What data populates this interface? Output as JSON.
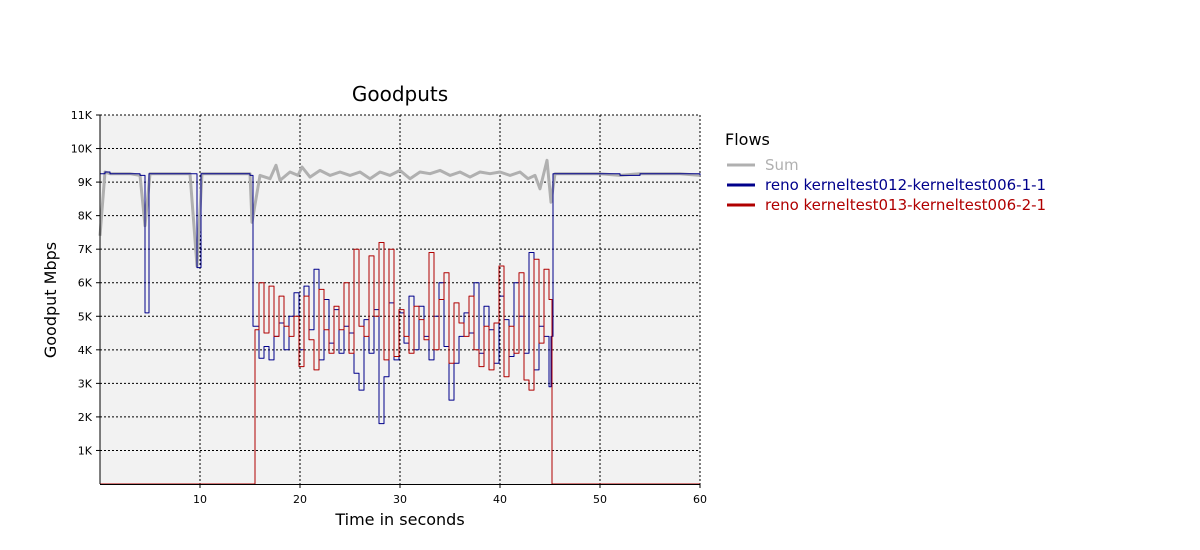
{
  "chart_data": {
    "type": "line",
    "title": "Goodputs",
    "xlabel": "Time in seconds",
    "ylabel": "Goodput Mbps",
    "xlim": [
      0,
      60
    ],
    "ylim": [
      0,
      11000
    ],
    "x_ticks": [
      10,
      20,
      30,
      40,
      50,
      60
    ],
    "x_tick_labels": [
      "10",
      "20",
      "30",
      "40",
      "50",
      "60"
    ],
    "y_ticks": [
      1000,
      2000,
      3000,
      4000,
      5000,
      6000,
      7000,
      8000,
      9000,
      10000,
      11000
    ],
    "y_tick_labels": [
      "1K",
      "2K",
      "3K",
      "4K",
      "5K",
      "6K",
      "7K",
      "8K",
      "9K",
      "10K",
      "11K"
    ],
    "grid": true,
    "legend_title": "Flows",
    "legend_position": "right",
    "series": [
      {
        "name": "Sum",
        "color": "#b0b0b0",
        "style": "line",
        "points": [
          [
            0,
            7400
          ],
          [
            0.5,
            9300
          ],
          [
            1,
            9250
          ],
          [
            2,
            9250
          ],
          [
            3,
            9250
          ],
          [
            4,
            9200
          ],
          [
            4.5,
            7700
          ],
          [
            5,
            9250
          ],
          [
            6,
            9250
          ],
          [
            7,
            9250
          ],
          [
            8,
            9250
          ],
          [
            9,
            9250
          ],
          [
            9.7,
            6500
          ],
          [
            10.2,
            9250
          ],
          [
            11,
            9250
          ],
          [
            12,
            9250
          ],
          [
            13,
            9250
          ],
          [
            14,
            9250
          ],
          [
            15,
            9250
          ],
          [
            15.2,
            7800
          ],
          [
            16,
            9200
          ],
          [
            17,
            9100
          ],
          [
            17.6,
            9500
          ],
          [
            18,
            9050
          ],
          [
            19,
            9300
          ],
          [
            19.8,
            9200
          ],
          [
            20.2,
            9450
          ],
          [
            21,
            9150
          ],
          [
            22,
            9350
          ],
          [
            23,
            9200
          ],
          [
            24,
            9300
          ],
          [
            25,
            9200
          ],
          [
            26,
            9300
          ],
          [
            27,
            9100
          ],
          [
            28,
            9300
          ],
          [
            29,
            9200
          ],
          [
            30,
            9350
          ],
          [
            31,
            9100
          ],
          [
            32,
            9300
          ],
          [
            33,
            9250
          ],
          [
            34,
            9350
          ],
          [
            35,
            9200
          ],
          [
            36,
            9300
          ],
          [
            37,
            9150
          ],
          [
            38,
            9300
          ],
          [
            39,
            9250
          ],
          [
            40,
            9300
          ],
          [
            41,
            9200
          ],
          [
            42,
            9300
          ],
          [
            42.8,
            9100
          ],
          [
            43.5,
            9200
          ],
          [
            44,
            8800
          ],
          [
            44.7,
            9650
          ],
          [
            45.1,
            8400
          ],
          [
            45.5,
            9250
          ],
          [
            46,
            9250
          ],
          [
            48,
            9250
          ],
          [
            50,
            9250
          ],
          [
            52,
            9200
          ],
          [
            54,
            9250
          ],
          [
            56,
            9250
          ],
          [
            58,
            9250
          ],
          [
            60,
            9200
          ]
        ]
      },
      {
        "name": "reno kerneltest012-kerneltest006-1-1",
        "color": "#00008b",
        "style": "step",
        "points": [
          [
            0,
            9250
          ],
          [
            0.5,
            9300
          ],
          [
            1,
            9250
          ],
          [
            2,
            9250
          ],
          [
            3,
            9250
          ],
          [
            4,
            9200
          ],
          [
            4.5,
            5100
          ],
          [
            4.9,
            9250
          ],
          [
            6,
            9250
          ],
          [
            8,
            9250
          ],
          [
            9.7,
            6450
          ],
          [
            10.1,
            9250
          ],
          [
            12,
            9250
          ],
          [
            14,
            9250
          ],
          [
            15,
            9200
          ],
          [
            15.3,
            4700
          ],
          [
            15.9,
            3750
          ],
          [
            16.4,
            4100
          ],
          [
            16.9,
            3700
          ],
          [
            17.4,
            4400
          ],
          [
            17.9,
            4800
          ],
          [
            18.4,
            4000
          ],
          [
            18.9,
            5000
          ],
          [
            19.4,
            5700
          ],
          [
            19.9,
            4000
          ],
          [
            20.4,
            5900
          ],
          [
            20.9,
            4600
          ],
          [
            21.4,
            6400
          ],
          [
            21.9,
            3700
          ],
          [
            22.4,
            5500
          ],
          [
            22.9,
            4200
          ],
          [
            23.4,
            5200
          ],
          [
            23.9,
            3900
          ],
          [
            24.4,
            4700
          ],
          [
            24.9,
            4500
          ],
          [
            25.4,
            3300
          ],
          [
            25.9,
            2800
          ],
          [
            26.4,
            4900
          ],
          [
            26.9,
            3900
          ],
          [
            27.4,
            5200
          ],
          [
            27.9,
            1800
          ],
          [
            28.4,
            3200
          ],
          [
            28.9,
            5400
          ],
          [
            29.4,
            3700
          ],
          [
            29.9,
            5100
          ],
          [
            30.4,
            4200
          ],
          [
            30.9,
            5600
          ],
          [
            31.4,
            4000
          ],
          [
            31.9,
            5300
          ],
          [
            32.4,
            4400
          ],
          [
            32.9,
            3700
          ],
          [
            33.4,
            5000
          ],
          [
            33.9,
            6000
          ],
          [
            34.4,
            4100
          ],
          [
            34.9,
            2500
          ],
          [
            35.4,
            3600
          ],
          [
            35.9,
            4400
          ],
          [
            36.4,
            5100
          ],
          [
            36.9,
            4500
          ],
          [
            37.4,
            6000
          ],
          [
            37.9,
            3900
          ],
          [
            38.4,
            5300
          ],
          [
            38.9,
            4600
          ],
          [
            39.4,
            3600
          ],
          [
            39.9,
            5600
          ],
          [
            40.4,
            4900
          ],
          [
            40.9,
            3800
          ],
          [
            41.4,
            6000
          ],
          [
            41.9,
            5000
          ],
          [
            42.4,
            3900
          ],
          [
            42.9,
            6900
          ],
          [
            43.4,
            3400
          ],
          [
            43.9,
            4700
          ],
          [
            44.4,
            4400
          ],
          [
            44.9,
            2900
          ],
          [
            45.1,
            4400
          ],
          [
            45.3,
            9250
          ],
          [
            46,
            9250
          ],
          [
            48,
            9250
          ],
          [
            50,
            9250
          ],
          [
            52,
            9200
          ],
          [
            54,
            9250
          ],
          [
            56,
            9250
          ],
          [
            58,
            9250
          ],
          [
            60,
            9200
          ]
        ]
      },
      {
        "name": "reno kerneltest013-kerneltest006-2-1",
        "color": "#b00000",
        "style": "step",
        "points": [
          [
            0,
            0
          ],
          [
            15.4,
            0
          ],
          [
            15.5,
            4600
          ],
          [
            15.9,
            6000
          ],
          [
            16.4,
            4500
          ],
          [
            16.9,
            5900
          ],
          [
            17.4,
            4400
          ],
          [
            17.9,
            5600
          ],
          [
            18.4,
            4700
          ],
          [
            18.9,
            4400
          ],
          [
            19.4,
            5000
          ],
          [
            19.9,
            3500
          ],
          [
            20.4,
            5600
          ],
          [
            20.9,
            4300
          ],
          [
            21.4,
            3400
          ],
          [
            21.9,
            5800
          ],
          [
            22.4,
            4600
          ],
          [
            22.9,
            3900
          ],
          [
            23.4,
            5300
          ],
          [
            23.9,
            4600
          ],
          [
            24.4,
            6000
          ],
          [
            24.9,
            3900
          ],
          [
            25.4,
            7000
          ],
          [
            25.9,
            4700
          ],
          [
            26.4,
            4400
          ],
          [
            26.9,
            6800
          ],
          [
            27.4,
            5000
          ],
          [
            27.9,
            7200
          ],
          [
            28.4,
            3700
          ],
          [
            28.9,
            7000
          ],
          [
            29.4,
            3800
          ],
          [
            29.9,
            5200
          ],
          [
            30.4,
            4400
          ],
          [
            30.9,
            3900
          ],
          [
            31.4,
            5300
          ],
          [
            31.9,
            4900
          ],
          [
            32.4,
            4300
          ],
          [
            32.9,
            6900
          ],
          [
            33.4,
            4000
          ],
          [
            33.9,
            5500
          ],
          [
            34.4,
            6300
          ],
          [
            34.9,
            3600
          ],
          [
            35.4,
            5400
          ],
          [
            35.9,
            4800
          ],
          [
            36.4,
            4400
          ],
          [
            36.9,
            5600
          ],
          [
            37.4,
            4000
          ],
          [
            37.9,
            3500
          ],
          [
            38.4,
            4700
          ],
          [
            38.9,
            3400
          ],
          [
            39.4,
            4800
          ],
          [
            39.9,
            6500
          ],
          [
            40.4,
            3200
          ],
          [
            40.9,
            4700
          ],
          [
            41.4,
            3900
          ],
          [
            41.9,
            6300
          ],
          [
            42.4,
            3100
          ],
          [
            42.9,
            2800
          ],
          [
            43.4,
            6700
          ],
          [
            43.9,
            4200
          ],
          [
            44.4,
            6400
          ],
          [
            44.9,
            5500
          ],
          [
            45.2,
            0
          ],
          [
            60,
            0
          ]
        ]
      }
    ]
  }
}
